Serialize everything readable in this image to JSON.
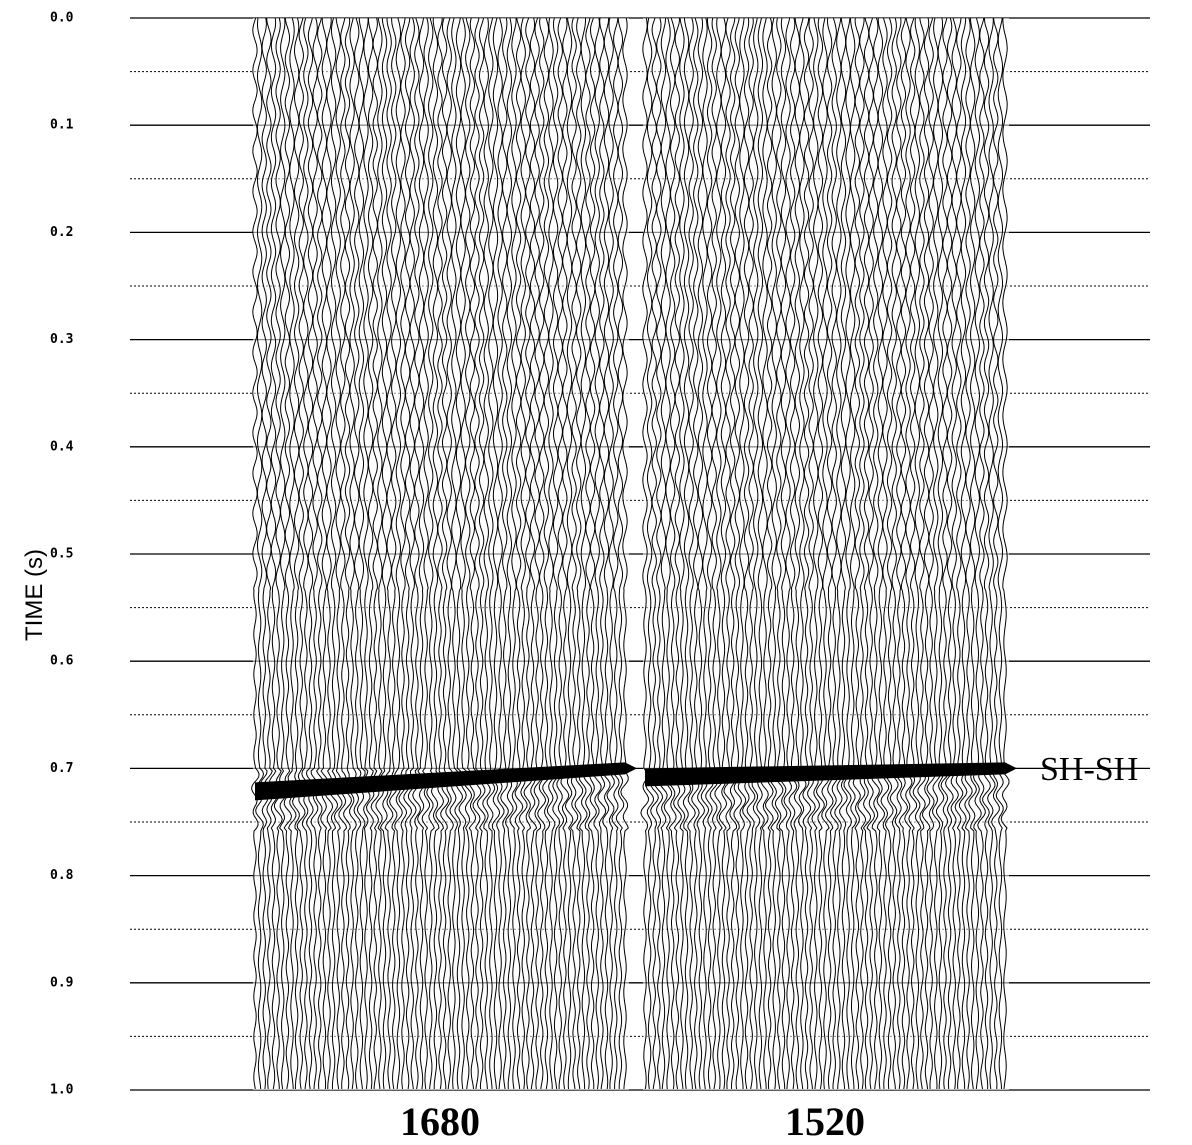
{
  "chart_data": {
    "type": "seismic",
    "ylabel": "TIME (s)",
    "ylim": [
      0,
      1
    ],
    "y_inverted": true,
    "yticks": [
      {
        "value": 0,
        "label": "0.0"
      },
      0.1,
      0.2,
      0.3,
      0.4,
      0.5,
      0.6,
      0.7,
      0.8,
      0.9,
      {
        "value": 1,
        "label": "1.0"
      }
    ],
    "minor_yticks": [
      0.05,
      0.15,
      0.25,
      0.35,
      0.45,
      0.55,
      0.65,
      0.75,
      0.85,
      0.95
    ],
    "panels": [
      {
        "label": "1680"
      },
      {
        "label": "1520"
      }
    ],
    "annotation": {
      "text": "SH-SH",
      "y": 0.7
    },
    "color": "#000000"
  }
}
